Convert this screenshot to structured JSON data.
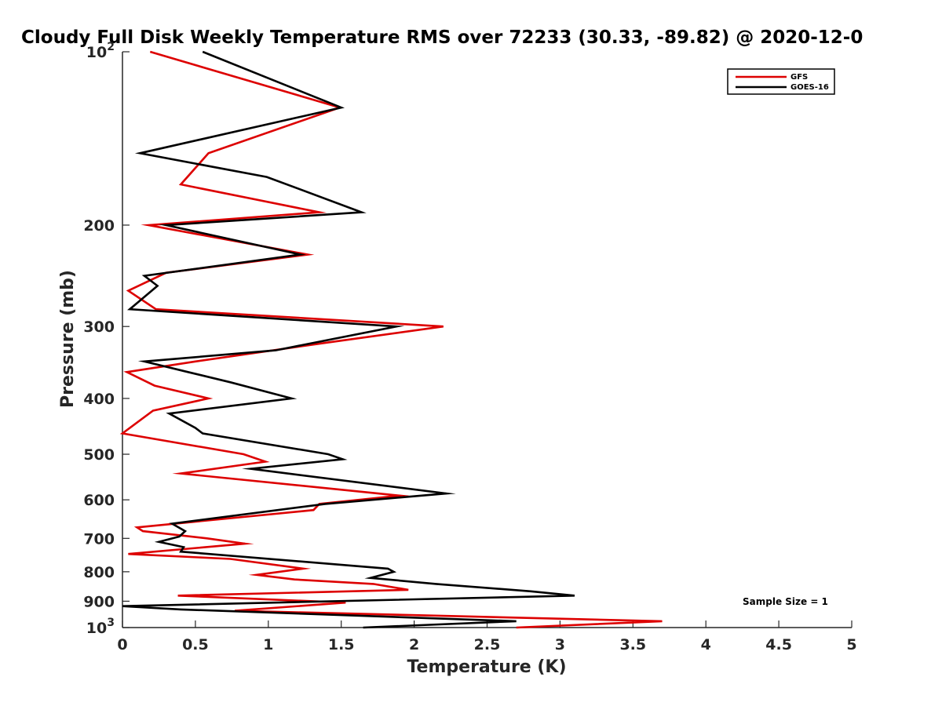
{
  "chart_data": {
    "type": "line",
    "title": "Cloudy Full Disk Weekly Temperature RMS over 72233 (30.33, -89.82) @ 2020-12-0",
    "xlabel": "Temperature (K)",
    "ylabel": "Pressure (mb)",
    "xlim": [
      0,
      5
    ],
    "ylim": [
      100,
      1000
    ],
    "y_scale": "log",
    "y_reversed": true,
    "grid": false,
    "legend_position": "top-right",
    "x_ticks": [
      "0",
      "0.5",
      "1",
      "1.5",
      "2",
      "2.5",
      "3",
      "3.5",
      "4",
      "4.5",
      "5"
    ],
    "y_ticks": [
      {
        "value": 100,
        "base": "10",
        "exp": "2"
      },
      {
        "value": 200,
        "label": "200"
      },
      {
        "value": 300,
        "label": "300"
      },
      {
        "value": 400,
        "label": "400"
      },
      {
        "value": 500,
        "label": "500"
      },
      {
        "value": 600,
        "label": "600"
      },
      {
        "value": 700,
        "label": "700"
      },
      {
        "value": 800,
        "label": "800"
      },
      {
        "value": 900,
        "label": "900"
      },
      {
        "value": 1000,
        "base": "10",
        "exp": "3"
      }
    ],
    "series": [
      {
        "name": "GFS",
        "color": "#dd0000",
        "points": [
          [
            0.19,
            100
          ],
          [
            1.49,
            125
          ],
          [
            0.59,
            150
          ],
          [
            0.4,
            170
          ],
          [
            1.35,
            190
          ],
          [
            0.18,
            200
          ],
          [
            1.27,
            225
          ],
          [
            0.3,
            242
          ],
          [
            0.04,
            260
          ],
          [
            0.23,
            280
          ],
          [
            2.2,
            300
          ],
          [
            1.4,
            320
          ],
          [
            0.5,
            345
          ],
          [
            0.03,
            360
          ],
          [
            0.22,
            380
          ],
          [
            0.59,
            400
          ],
          [
            0.21,
            420
          ],
          [
            0.0,
            460
          ],
          [
            0.83,
            500
          ],
          [
            0.98,
            515
          ],
          [
            0.4,
            540
          ],
          [
            1.9,
            590
          ],
          [
            1.35,
            610
          ],
          [
            1.31,
            625
          ],
          [
            0.1,
            670
          ],
          [
            0.14,
            680
          ],
          [
            0.58,
            700
          ],
          [
            0.84,
            715
          ],
          [
            0.04,
            745
          ],
          [
            0.74,
            760
          ],
          [
            1.24,
            790
          ],
          [
            0.92,
            810
          ],
          [
            1.18,
            825
          ],
          [
            1.72,
            840
          ],
          [
            1.96,
            860
          ],
          [
            0.38,
            880
          ],
          [
            1.53,
            905
          ],
          [
            0.77,
            935
          ],
          [
            3.7,
            975
          ],
          [
            2.7,
            1000
          ]
        ]
      },
      {
        "name": "GOES-16",
        "color": "#000000",
        "points": [
          [
            0.55,
            100
          ],
          [
            1.5,
            125
          ],
          [
            0.12,
            150
          ],
          [
            0.99,
            165
          ],
          [
            1.64,
            190
          ],
          [
            0.3,
            200
          ],
          [
            1.22,
            225
          ],
          [
            0.15,
            245
          ],
          [
            0.24,
            255
          ],
          [
            0.05,
            280
          ],
          [
            1.88,
            300
          ],
          [
            1.05,
            330
          ],
          [
            0.15,
            345
          ],
          [
            0.45,
            360
          ],
          [
            0.74,
            375
          ],
          [
            1.16,
            400
          ],
          [
            0.32,
            425
          ],
          [
            0.5,
            450
          ],
          [
            0.55,
            460
          ],
          [
            1.41,
            500
          ],
          [
            1.51,
            510
          ],
          [
            0.88,
            530
          ],
          [
            2.22,
            585
          ],
          [
            1.39,
            610
          ],
          [
            0.34,
            660
          ],
          [
            0.43,
            680
          ],
          [
            0.39,
            695
          ],
          [
            0.25,
            710
          ],
          [
            0.42,
            725
          ],
          [
            0.4,
            738
          ],
          [
            1.82,
            790
          ],
          [
            1.86,
            800
          ],
          [
            1.7,
            820
          ],
          [
            2.15,
            840
          ],
          [
            2.8,
            865
          ],
          [
            3.1,
            880
          ],
          [
            0.0,
            918
          ],
          [
            0.4,
            930
          ],
          [
            2.7,
            975
          ],
          [
            1.65,
            1000
          ]
        ]
      }
    ],
    "annotations": [
      {
        "text": "Sample Size = 1",
        "position": "bottom-right"
      }
    ]
  }
}
